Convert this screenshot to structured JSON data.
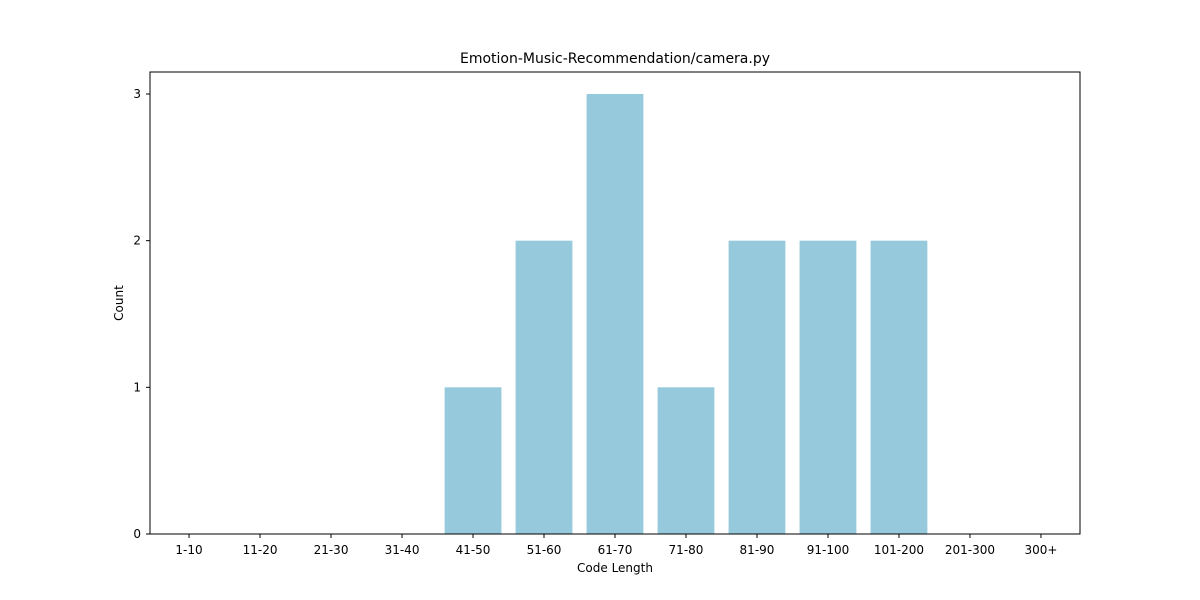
{
  "chart_data": {
    "type": "bar",
    "title": "Emotion-Music-Recommendation/camera.py",
    "xlabel": "Code Length",
    "ylabel": "Count",
    "categories": [
      "1-10",
      "11-20",
      "21-30",
      "31-40",
      "41-50",
      "51-60",
      "61-70",
      "71-80",
      "81-90",
      "91-100",
      "101-200",
      "201-300",
      "300+"
    ],
    "values": [
      0,
      0,
      0,
      0,
      1,
      2,
      3,
      1,
      2,
      2,
      2,
      0,
      0
    ],
    "ylim": [
      0,
      3.15
    ],
    "yticks": [
      0,
      1,
      2,
      3
    ],
    "grid": false,
    "bar_color": "#96c9dc"
  }
}
